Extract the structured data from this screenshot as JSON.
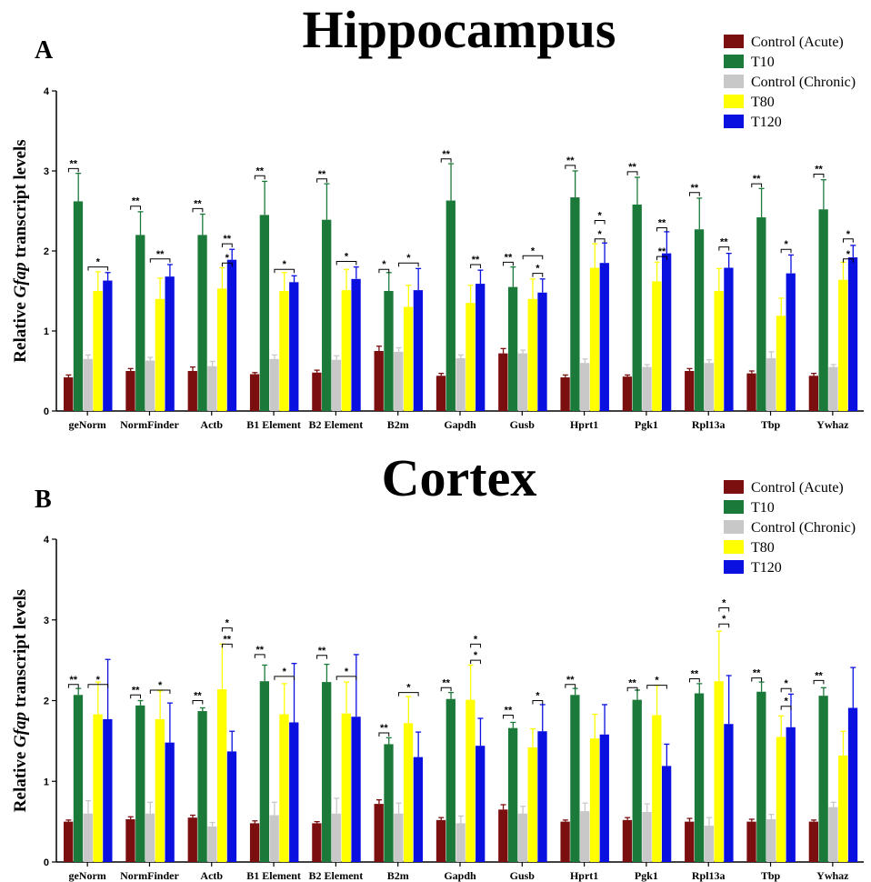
{
  "colors": {
    "Control (Acute)": "#7b0f0f",
    "T10": "#1b7a3a",
    "Control (Chronic)": "#c8c8c8",
    "T80": "#ffff00",
    "T120": "#0a10e0"
  },
  "chart_data": [
    {
      "type": "bar",
      "panel_label": "A",
      "title": "Hippocampus",
      "ylabel_parts": [
        "Relative ",
        "Gfap",
        " transcript levels"
      ],
      "ylim": [
        0,
        4
      ],
      "yticks": [
        "0",
        "1",
        "2",
        "3",
        "4"
      ],
      "legend_position": "top-right",
      "categories": [
        "geNorm",
        "NormFinder",
        "Actb",
        "B1 Element",
        "B2 Element",
        "B2m",
        "Gapdh",
        "Gusb",
        "Hprt1",
        "Pgk1",
        "Rpl13a",
        "Tbp",
        "Ywhaz"
      ],
      "series": [
        {
          "name": "Control (Acute)",
          "values": [
            0.42,
            0.5,
            0.5,
            0.46,
            0.48,
            0.75,
            0.44,
            0.72,
            0.42,
            0.43,
            0.5,
            0.47,
            0.44
          ],
          "errors": [
            0.03,
            0.03,
            0.05,
            0.02,
            0.03,
            0.06,
            0.03,
            0.06,
            0.03,
            0.02,
            0.03,
            0.03,
            0.03
          ]
        },
        {
          "name": "T10",
          "values": [
            2.62,
            2.2,
            2.2,
            2.45,
            2.39,
            1.5,
            2.63,
            1.55,
            2.67,
            2.58,
            2.27,
            2.42,
            2.52
          ],
          "errors": [
            0.35,
            0.29,
            0.26,
            0.42,
            0.45,
            0.23,
            0.46,
            0.25,
            0.33,
            0.34,
            0.39,
            0.36,
            0.37
          ]
        },
        {
          "name": "Control (Chronic)",
          "values": [
            0.65,
            0.63,
            0.56,
            0.65,
            0.64,
            0.74,
            0.66,
            0.72,
            0.6,
            0.55,
            0.6,
            0.66,
            0.55
          ],
          "errors": [
            0.05,
            0.04,
            0.06,
            0.05,
            0.05,
            0.05,
            0.04,
            0.04,
            0.05,
            0.03,
            0.04,
            0.08,
            0.03
          ]
        },
        {
          "name": "T80",
          "values": [
            1.5,
            1.4,
            1.53,
            1.5,
            1.51,
            1.3,
            1.35,
            1.4,
            1.79,
            1.62,
            1.5,
            1.19,
            1.64
          ],
          "errors": [
            0.24,
            0.26,
            0.26,
            0.23,
            0.26,
            0.27,
            0.22,
            0.25,
            0.3,
            0.24,
            0.28,
            0.22,
            0.22
          ]
        },
        {
          "name": "T120",
          "values": [
            1.63,
            1.68,
            1.89,
            1.61,
            1.65,
            1.51,
            1.59,
            1.48,
            1.85,
            1.97,
            1.79,
            1.72,
            1.92
          ],
          "errors": [
            0.1,
            0.15,
            0.13,
            0.08,
            0.15,
            0.27,
            0.17,
            0.17,
            0.25,
            0.27,
            0.18,
            0.23,
            0.15
          ]
        }
      ],
      "significance": [
        {
          "cat": 0,
          "from": 0,
          "to": 1,
          "label": "**",
          "y": 3.03
        },
        {
          "cat": 0,
          "from": 2,
          "to": 4,
          "label": "*",
          "y": 1.8
        },
        {
          "cat": 1,
          "from": 0,
          "to": 1,
          "label": "**",
          "y": 2.56
        },
        {
          "cat": 1,
          "from": 2,
          "to": 4,
          "label": "**",
          "y": 1.9
        },
        {
          "cat": 2,
          "from": 0,
          "to": 1,
          "label": "**",
          "y": 2.53
        },
        {
          "cat": 2,
          "from": 3,
          "to": 4,
          "label": "*",
          "y": 1.85
        },
        {
          "cat": 2,
          "from": 3,
          "to": 4,
          "label": "**",
          "y": 2.09
        },
        {
          "cat": 3,
          "from": 0,
          "to": 1,
          "label": "**",
          "y": 2.94
        },
        {
          "cat": 3,
          "from": 2,
          "to": 4,
          "label": "*",
          "y": 1.77
        },
        {
          "cat": 4,
          "from": 0,
          "to": 1,
          "label": "**",
          "y": 2.9
        },
        {
          "cat": 4,
          "from": 2,
          "to": 4,
          "label": "*",
          "y": 1.87
        },
        {
          "cat": 5,
          "from": 0,
          "to": 1,
          "label": "*",
          "y": 1.77
        },
        {
          "cat": 5,
          "from": 2,
          "to": 4,
          "label": "*",
          "y": 1.85
        },
        {
          "cat": 6,
          "from": 0,
          "to": 1,
          "label": "**",
          "y": 3.15
        },
        {
          "cat": 6,
          "from": 3,
          "to": 4,
          "label": "**",
          "y": 1.83
        },
        {
          "cat": 7,
          "from": 0,
          "to": 1,
          "label": "**",
          "y": 1.86
        },
        {
          "cat": 7,
          "from": 3,
          "to": 4,
          "label": "*",
          "y": 1.72
        },
        {
          "cat": 7,
          "from": 2,
          "to": 4,
          "label": "*",
          "y": 1.94
        },
        {
          "cat": 8,
          "from": 0,
          "to": 1,
          "label": "**",
          "y": 3.07
        },
        {
          "cat": 8,
          "from": 3,
          "to": 4,
          "label": "*",
          "y": 2.15
        },
        {
          "cat": 8,
          "from": 3,
          "to": 4,
          "label": "*",
          "y": 2.38
        },
        {
          "cat": 9,
          "from": 0,
          "to": 1,
          "label": "**",
          "y": 2.99
        },
        {
          "cat": 9,
          "from": 3,
          "to": 4,
          "label": "**",
          "y": 1.93
        },
        {
          "cat": 9,
          "from": 3,
          "to": 4,
          "label": "**",
          "y": 2.29
        },
        {
          "cat": 10,
          "from": 0,
          "to": 1,
          "label": "**",
          "y": 2.73
        },
        {
          "cat": 10,
          "from": 3,
          "to": 4,
          "label": "**",
          "y": 2.05
        },
        {
          "cat": 11,
          "from": 0,
          "to": 1,
          "label": "**",
          "y": 2.84
        },
        {
          "cat": 11,
          "from": 3,
          "to": 4,
          "label": "*",
          "y": 2.02
        },
        {
          "cat": 12,
          "from": 0,
          "to": 1,
          "label": "**",
          "y": 2.96
        },
        {
          "cat": 12,
          "from": 3,
          "to": 4,
          "label": "*",
          "y": 1.9
        },
        {
          "cat": 12,
          "from": 3,
          "to": 4,
          "label": "*",
          "y": 2.15
        }
      ]
    },
    {
      "type": "bar",
      "panel_label": "B",
      "title": "Cortex",
      "ylabel_parts": [
        "Relative ",
        "Gfap",
        " transcript levels"
      ],
      "ylim": [
        0,
        4
      ],
      "yticks": [
        "0",
        "1",
        "2",
        "3",
        "4"
      ],
      "legend_position": "top-right",
      "categories": [
        "geNorm",
        "NormFinder",
        "Actb",
        "B1 Element",
        "B2 Element",
        "B2m",
        "Gapdh",
        "Gusb",
        "Hprt1",
        "Pgk1",
        "Rpl13a",
        "Tbp",
        "Ywhaz"
      ],
      "series": [
        {
          "name": "Control (Acute)",
          "values": [
            0.5,
            0.53,
            0.55,
            0.48,
            0.48,
            0.72,
            0.52,
            0.65,
            0.5,
            0.52,
            0.5,
            0.5,
            0.5
          ],
          "errors": [
            0.02,
            0.03,
            0.03,
            0.03,
            0.02,
            0.05,
            0.03,
            0.06,
            0.02,
            0.03,
            0.04,
            0.03,
            0.02
          ]
        },
        {
          "name": "T10",
          "values": [
            2.07,
            1.94,
            1.87,
            2.24,
            2.23,
            1.46,
            2.02,
            1.66,
            2.07,
            2.01,
            2.09,
            2.11,
            2.06
          ],
          "errors": [
            0.08,
            0.06,
            0.04,
            0.2,
            0.22,
            0.08,
            0.08,
            0.07,
            0.08,
            0.12,
            0.12,
            0.12,
            0.1
          ]
        },
        {
          "name": "Control (Chronic)",
          "values": [
            0.6,
            0.6,
            0.44,
            0.58,
            0.6,
            0.6,
            0.48,
            0.6,
            0.63,
            0.62,
            0.45,
            0.53,
            0.68
          ],
          "errors": [
            0.16,
            0.14,
            0.05,
            0.16,
            0.19,
            0.13,
            0.09,
            0.09,
            0.1,
            0.1,
            0.1,
            0.06,
            0.06
          ]
        },
        {
          "name": "T80",
          "values": [
            1.83,
            1.77,
            2.14,
            1.83,
            1.84,
            1.72,
            2.01,
            1.42,
            1.53,
            1.82,
            2.24,
            1.55,
            1.32
          ],
          "errors": [
            0.4,
            0.35,
            0.56,
            0.38,
            0.39,
            0.33,
            0.43,
            0.23,
            0.3,
            0.37,
            0.62,
            0.26,
            0.3
          ]
        },
        {
          "name": "T120",
          "values": [
            1.77,
            1.48,
            1.37,
            1.73,
            1.8,
            1.3,
            1.44,
            1.62,
            1.58,
            1.19,
            1.71,
            1.67,
            1.91
          ],
          "errors": [
            0.74,
            0.49,
            0.25,
            0.73,
            0.77,
            0.31,
            0.34,
            0.33,
            0.37,
            0.27,
            0.6,
            0.41,
            0.5
          ]
        }
      ],
      "significance": [
        {
          "cat": 0,
          "from": 0,
          "to": 1,
          "label": "**",
          "y": 2.2
        },
        {
          "cat": 0,
          "from": 2,
          "to": 4,
          "label": "*",
          "y": 2.2
        },
        {
          "cat": 1,
          "from": 0,
          "to": 1,
          "label": "**",
          "y": 2.07
        },
        {
          "cat": 1,
          "from": 2,
          "to": 4,
          "label": "*",
          "y": 2.13
        },
        {
          "cat": 2,
          "from": 0,
          "to": 1,
          "label": "**",
          "y": 2.0
        },
        {
          "cat": 2,
          "from": 3,
          "to": 4,
          "label": "**",
          "y": 2.7
        },
        {
          "cat": 2,
          "from": 3,
          "to": 4,
          "label": "*",
          "y": 2.9
        },
        {
          "cat": 3,
          "from": 0,
          "to": 1,
          "label": "**",
          "y": 2.57
        },
        {
          "cat": 3,
          "from": 2,
          "to": 4,
          "label": "*",
          "y": 2.3
        },
        {
          "cat": 4,
          "from": 0,
          "to": 1,
          "label": "**",
          "y": 2.56
        },
        {
          "cat": 4,
          "from": 2,
          "to": 4,
          "label": "*",
          "y": 2.3
        },
        {
          "cat": 5,
          "from": 0,
          "to": 1,
          "label": "**",
          "y": 1.6
        },
        {
          "cat": 5,
          "from": 2,
          "to": 4,
          "label": "*",
          "y": 2.1
        },
        {
          "cat": 6,
          "from": 0,
          "to": 1,
          "label": "**",
          "y": 2.16
        },
        {
          "cat": 6,
          "from": 3,
          "to": 4,
          "label": "*",
          "y": 2.5
        },
        {
          "cat": 6,
          "from": 3,
          "to": 4,
          "label": "*",
          "y": 2.7
        },
        {
          "cat": 7,
          "from": 0,
          "to": 1,
          "label": "**",
          "y": 1.82
        },
        {
          "cat": 7,
          "from": 3,
          "to": 4,
          "label": "*",
          "y": 2.0
        },
        {
          "cat": 8,
          "from": 0,
          "to": 1,
          "label": "**",
          "y": 2.2
        },
        {
          "cat": 9,
          "from": 0,
          "to": 1,
          "label": "**",
          "y": 2.16
        },
        {
          "cat": 9,
          "from": 2,
          "to": 4,
          "label": "*",
          "y": 2.19
        },
        {
          "cat": 10,
          "from": 0,
          "to": 1,
          "label": "**",
          "y": 2.27
        },
        {
          "cat": 10,
          "from": 3,
          "to": 4,
          "label": "*",
          "y": 2.95
        },
        {
          "cat": 10,
          "from": 3,
          "to": 4,
          "label": "*",
          "y": 3.15
        },
        {
          "cat": 11,
          "from": 0,
          "to": 1,
          "label": "**",
          "y": 2.28
        },
        {
          "cat": 11,
          "from": 3,
          "to": 4,
          "label": "*",
          "y": 1.93
        },
        {
          "cat": 11,
          "from": 3,
          "to": 4,
          "label": "*",
          "y": 2.15
        },
        {
          "cat": 12,
          "from": 0,
          "to": 1,
          "label": "**",
          "y": 2.25
        }
      ]
    }
  ]
}
